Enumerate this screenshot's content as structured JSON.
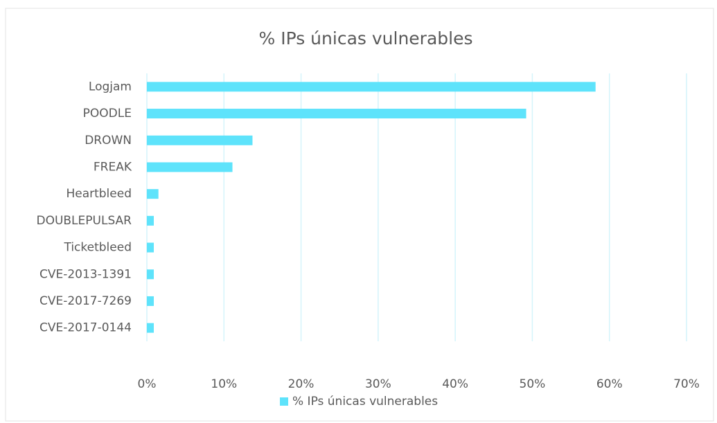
{
  "chart_data": {
    "type": "bar",
    "orientation": "horizontal",
    "title": "% IPs únicas vulnerables",
    "categories": [
      "Logjam",
      "POODLE",
      "DROWN",
      "FREAK",
      "Heartbleed",
      "DOUBLEPULSAR",
      "Ticketbleed",
      "CVE-2013-1391",
      "CVE-2017-7269",
      "CVE-2017-0144"
    ],
    "series": [
      {
        "name": "% IPs únicas vulnerables",
        "color": "#5ee3fb",
        "values": [
          58.2,
          49.2,
          13.7,
          11.1,
          1.5,
          0.9,
          0.9,
          0.9,
          0.9,
          0.9
        ]
      }
    ],
    "xlim": [
      0,
      70
    ],
    "xticks": [
      {
        "value": 0,
        "label": "0%"
      },
      {
        "value": 10,
        "label": "10%"
      },
      {
        "value": 20,
        "label": "20%"
      },
      {
        "value": 30,
        "label": "30%"
      },
      {
        "value": 40,
        "label": "40%"
      },
      {
        "value": 50,
        "label": "50%"
      },
      {
        "value": 60,
        "label": "60%"
      },
      {
        "value": 70,
        "label": "70%"
      }
    ],
    "grid": true,
    "legend": "bottom"
  }
}
